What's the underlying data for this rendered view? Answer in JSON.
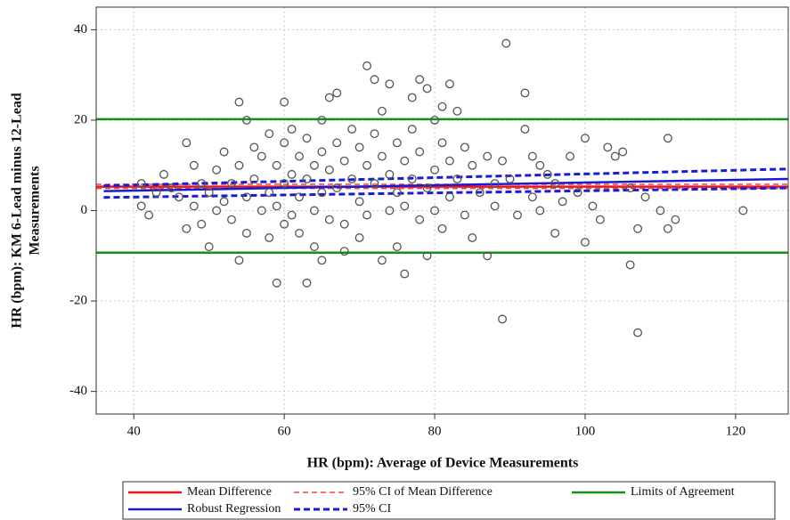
{
  "chart_data": {
    "type": "scatter",
    "xlabel": "HR (bpm): Average of Device Measurements",
    "ylabel": [
      "HR (bpm): KM 6-Lead minus 12-Lead",
      "Measurements"
    ],
    "xlim": [
      35,
      127
    ],
    "ylim": [
      -45,
      45
    ],
    "xticks": [
      40,
      60,
      80,
      100,
      120
    ],
    "yticks": [
      -40,
      -20,
      0,
      20,
      40
    ],
    "grid": true,
    "series": [
      {
        "color": "#555555",
        "x": [
          41,
          41,
          42,
          43,
          44,
          45,
          46,
          47,
          47,
          48,
          48,
          49,
          49,
          50,
          50,
          51,
          51,
          52,
          52,
          53,
          53,
          54,
          54,
          54,
          55,
          55,
          55,
          56,
          56,
          57,
          57,
          58,
          58,
          58,
          59,
          59,
          59,
          60,
          60,
          60,
          60,
          61,
          61,
          61,
          62,
          62,
          62,
          63,
          63,
          63,
          64,
          64,
          64,
          65,
          65,
          65,
          65,
          66,
          66,
          66,
          67,
          67,
          67,
          68,
          68,
          68,
          69,
          69,
          70,
          70,
          70,
          71,
          71,
          71,
          72,
          72,
          72,
          73,
          73,
          73,
          74,
          74,
          74,
          75,
          75,
          75,
          76,
          76,
          76,
          77,
          77,
          77,
          78,
          78,
          78,
          79,
          79,
          79,
          80,
          80,
          80,
          81,
          81,
          81,
          82,
          82,
          82,
          83,
          83,
          84,
          84,
          85,
          85,
          86,
          87,
          87,
          88,
          88,
          89.5,
          89,
          89,
          90,
          91,
          92,
          92,
          93,
          93,
          94,
          94,
          95,
          96,
          96,
          97,
          98,
          99,
          100,
          100,
          101,
          102,
          103,
          104,
          105,
          106,
          106,
          107,
          107,
          108,
          110,
          111,
          111,
          112,
          121
        ],
        "values": [
          1,
          6,
          -1,
          4,
          8,
          5,
          3,
          15,
          -4,
          10,
          1,
          6,
          -3,
          -8,
          4,
          9,
          0,
          13,
          2,
          6,
          -2,
          24,
          -11,
          10,
          20,
          3,
          -5,
          14,
          7,
          0,
          12,
          17,
          4,
          -6,
          -16,
          10,
          1,
          24,
          15,
          6,
          -3,
          18,
          8,
          -1,
          12,
          3,
          -5,
          -16,
          16,
          7,
          10,
          0,
          -8,
          20,
          13,
          4,
          -11,
          25,
          9,
          -2,
          26,
          15,
          5,
          11,
          -3,
          -9,
          18,
          7,
          14,
          2,
          -6,
          32,
          10,
          -1,
          29,
          17,
          6,
          22,
          12,
          -11,
          28,
          8,
          0,
          15,
          4,
          -8,
          -14,
          11,
          1,
          25,
          18,
          7,
          29,
          13,
          -2,
          27,
          5,
          -10,
          20,
          9,
          0,
          23,
          15,
          -4,
          28,
          11,
          3,
          22,
          7,
          14,
          -1,
          10,
          -6,
          4,
          -10,
          12,
          6,
          1,
          37,
          -24,
          11,
          7,
          -1,
          26,
          18,
          12,
          3,
          10,
          0,
          8,
          -5,
          6,
          2,
          12,
          4,
          -7,
          16,
          1,
          -2,
          14,
          12,
          13,
          -12,
          5,
          -27,
          -4,
          3,
          0,
          16,
          -4,
          -2,
          0
        ]
      },
      {
        "name": "Mean Difference",
        "color": "#e8141c",
        "x": [
          35,
          127
        ],
        "values": [
          5.3,
          5.3
        ]
      },
      {
        "name": "95% CI of Mean Difference",
        "color": "#ee4444",
        "dash": true,
        "x": [
          35,
          127
        ],
        "lower": [
          4.9,
          4.9
        ],
        "upper": [
          5.8,
          5.8
        ]
      },
      {
        "name": "Limits of Agreement",
        "color": "#139113",
        "x": [
          35,
          127
        ],
        "lower": [
          -9.3,
          -9.3
        ],
        "upper": [
          20.2,
          20.2
        ]
      },
      {
        "name": "Robust Regression",
        "color": "#1b1bd6",
        "x": [
          36,
          127
        ],
        "values": [
          4.3,
          7.0
        ]
      },
      {
        "name": "95% CI",
        "color": "#1b1bd6",
        "dash": true,
        "x": [
          36,
          127
        ],
        "lower": [
          2.9,
          5.0
        ],
        "upper": [
          5.5,
          9.2
        ]
      }
    ]
  }
}
